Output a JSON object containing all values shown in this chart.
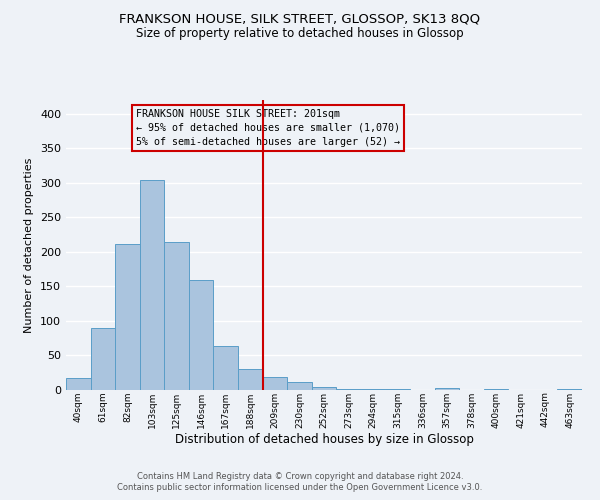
{
  "title": "FRANKSON HOUSE, SILK STREET, GLOSSOP, SK13 8QQ",
  "subtitle": "Size of property relative to detached houses in Glossop",
  "xlabel": "Distribution of detached houses by size in Glossop",
  "ylabel": "Number of detached properties",
  "bin_labels": [
    "40sqm",
    "61sqm",
    "82sqm",
    "103sqm",
    "125sqm",
    "146sqm",
    "167sqm",
    "188sqm",
    "209sqm",
    "230sqm",
    "252sqm",
    "273sqm",
    "294sqm",
    "315sqm",
    "336sqm",
    "357sqm",
    "378sqm",
    "400sqm",
    "421sqm",
    "442sqm",
    "463sqm"
  ],
  "bar_heights": [
    17,
    90,
    211,
    304,
    215,
    160,
    64,
    30,
    19,
    11,
    4,
    2,
    1,
    1,
    0,
    3,
    0,
    1,
    0,
    0,
    1
  ],
  "bar_color": "#aac4de",
  "bar_edge_color": "#5a9ec8",
  "ylim": [
    0,
    420
  ],
  "yticks": [
    0,
    50,
    100,
    150,
    200,
    250,
    300,
    350,
    400
  ],
  "vline_x": 8.0,
  "vline_color": "#cc0000",
  "box_text_line1": "FRANKSON HOUSE SILK STREET: 201sqm",
  "box_text_line2": "← 95% of detached houses are smaller (1,070)",
  "box_text_line3": "5% of semi-detached houses are larger (52) →",
  "box_edge_color": "#cc0000",
  "footer_line1": "Contains HM Land Registry data © Crown copyright and database right 2024.",
  "footer_line2": "Contains public sector information licensed under the Open Government Licence v3.0.",
  "background_color": "#eef2f7",
  "grid_color": "#ffffff"
}
